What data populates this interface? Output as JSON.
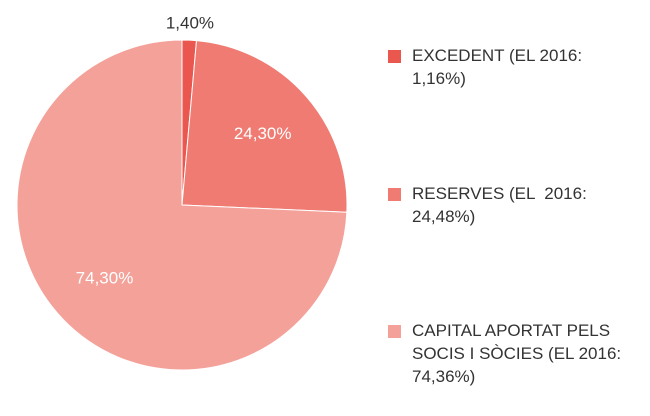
{
  "chart_data": {
    "type": "pie",
    "categories": [
      "EXCEDENT (EL 2016: 1,16%)",
      "RESERVES (EL  2016: 24,48%)",
      "CAPITAL APORTAT PELS SOCIS I SÒCIES (EL 2016: 74,36%)"
    ],
    "values": [
      1.4,
      24.3,
      74.3
    ],
    "value_labels": [
      "1,40%",
      "24,30%",
      "74,30%"
    ],
    "colors": [
      "#e9574f",
      "#ef7b72",
      "#f4a19a"
    ],
    "legend": "right"
  }
}
